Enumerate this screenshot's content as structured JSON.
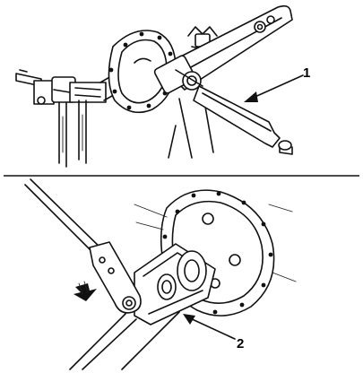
{
  "callouts": {
    "top": {
      "number": "1"
    },
    "bottom": {
      "number": "2"
    }
  }
}
